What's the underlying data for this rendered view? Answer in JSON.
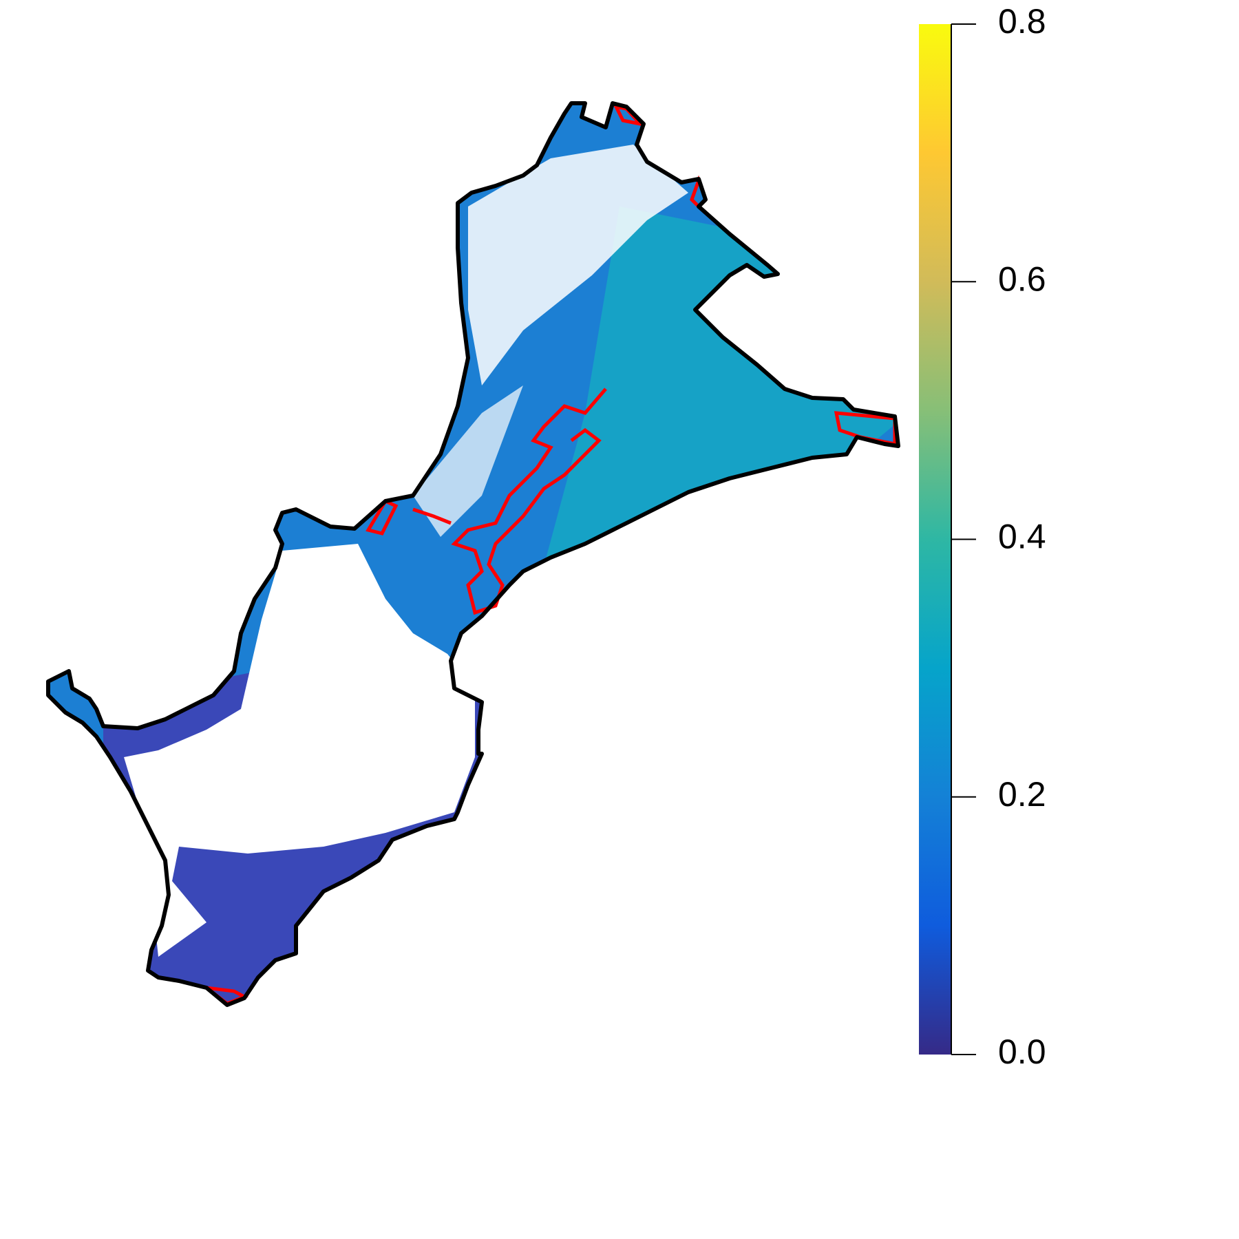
{
  "chart_data": {
    "type": "map",
    "colorbar": {
      "lim": [
        0,
        0.8
      ],
      "ticks": [
        {
          "value": 0,
          "label": "0.0"
        },
        0.2,
        0.4,
        0.6,
        0.8
      ],
      "colors": [
        "#352a87",
        "#0f5cdd",
        "#1481d6",
        "#06a4ca",
        "#2eb7a4",
        "#87bf77",
        "#d1bb59",
        "#fec832",
        "#f9fb0e"
      ]
    }
  }
}
